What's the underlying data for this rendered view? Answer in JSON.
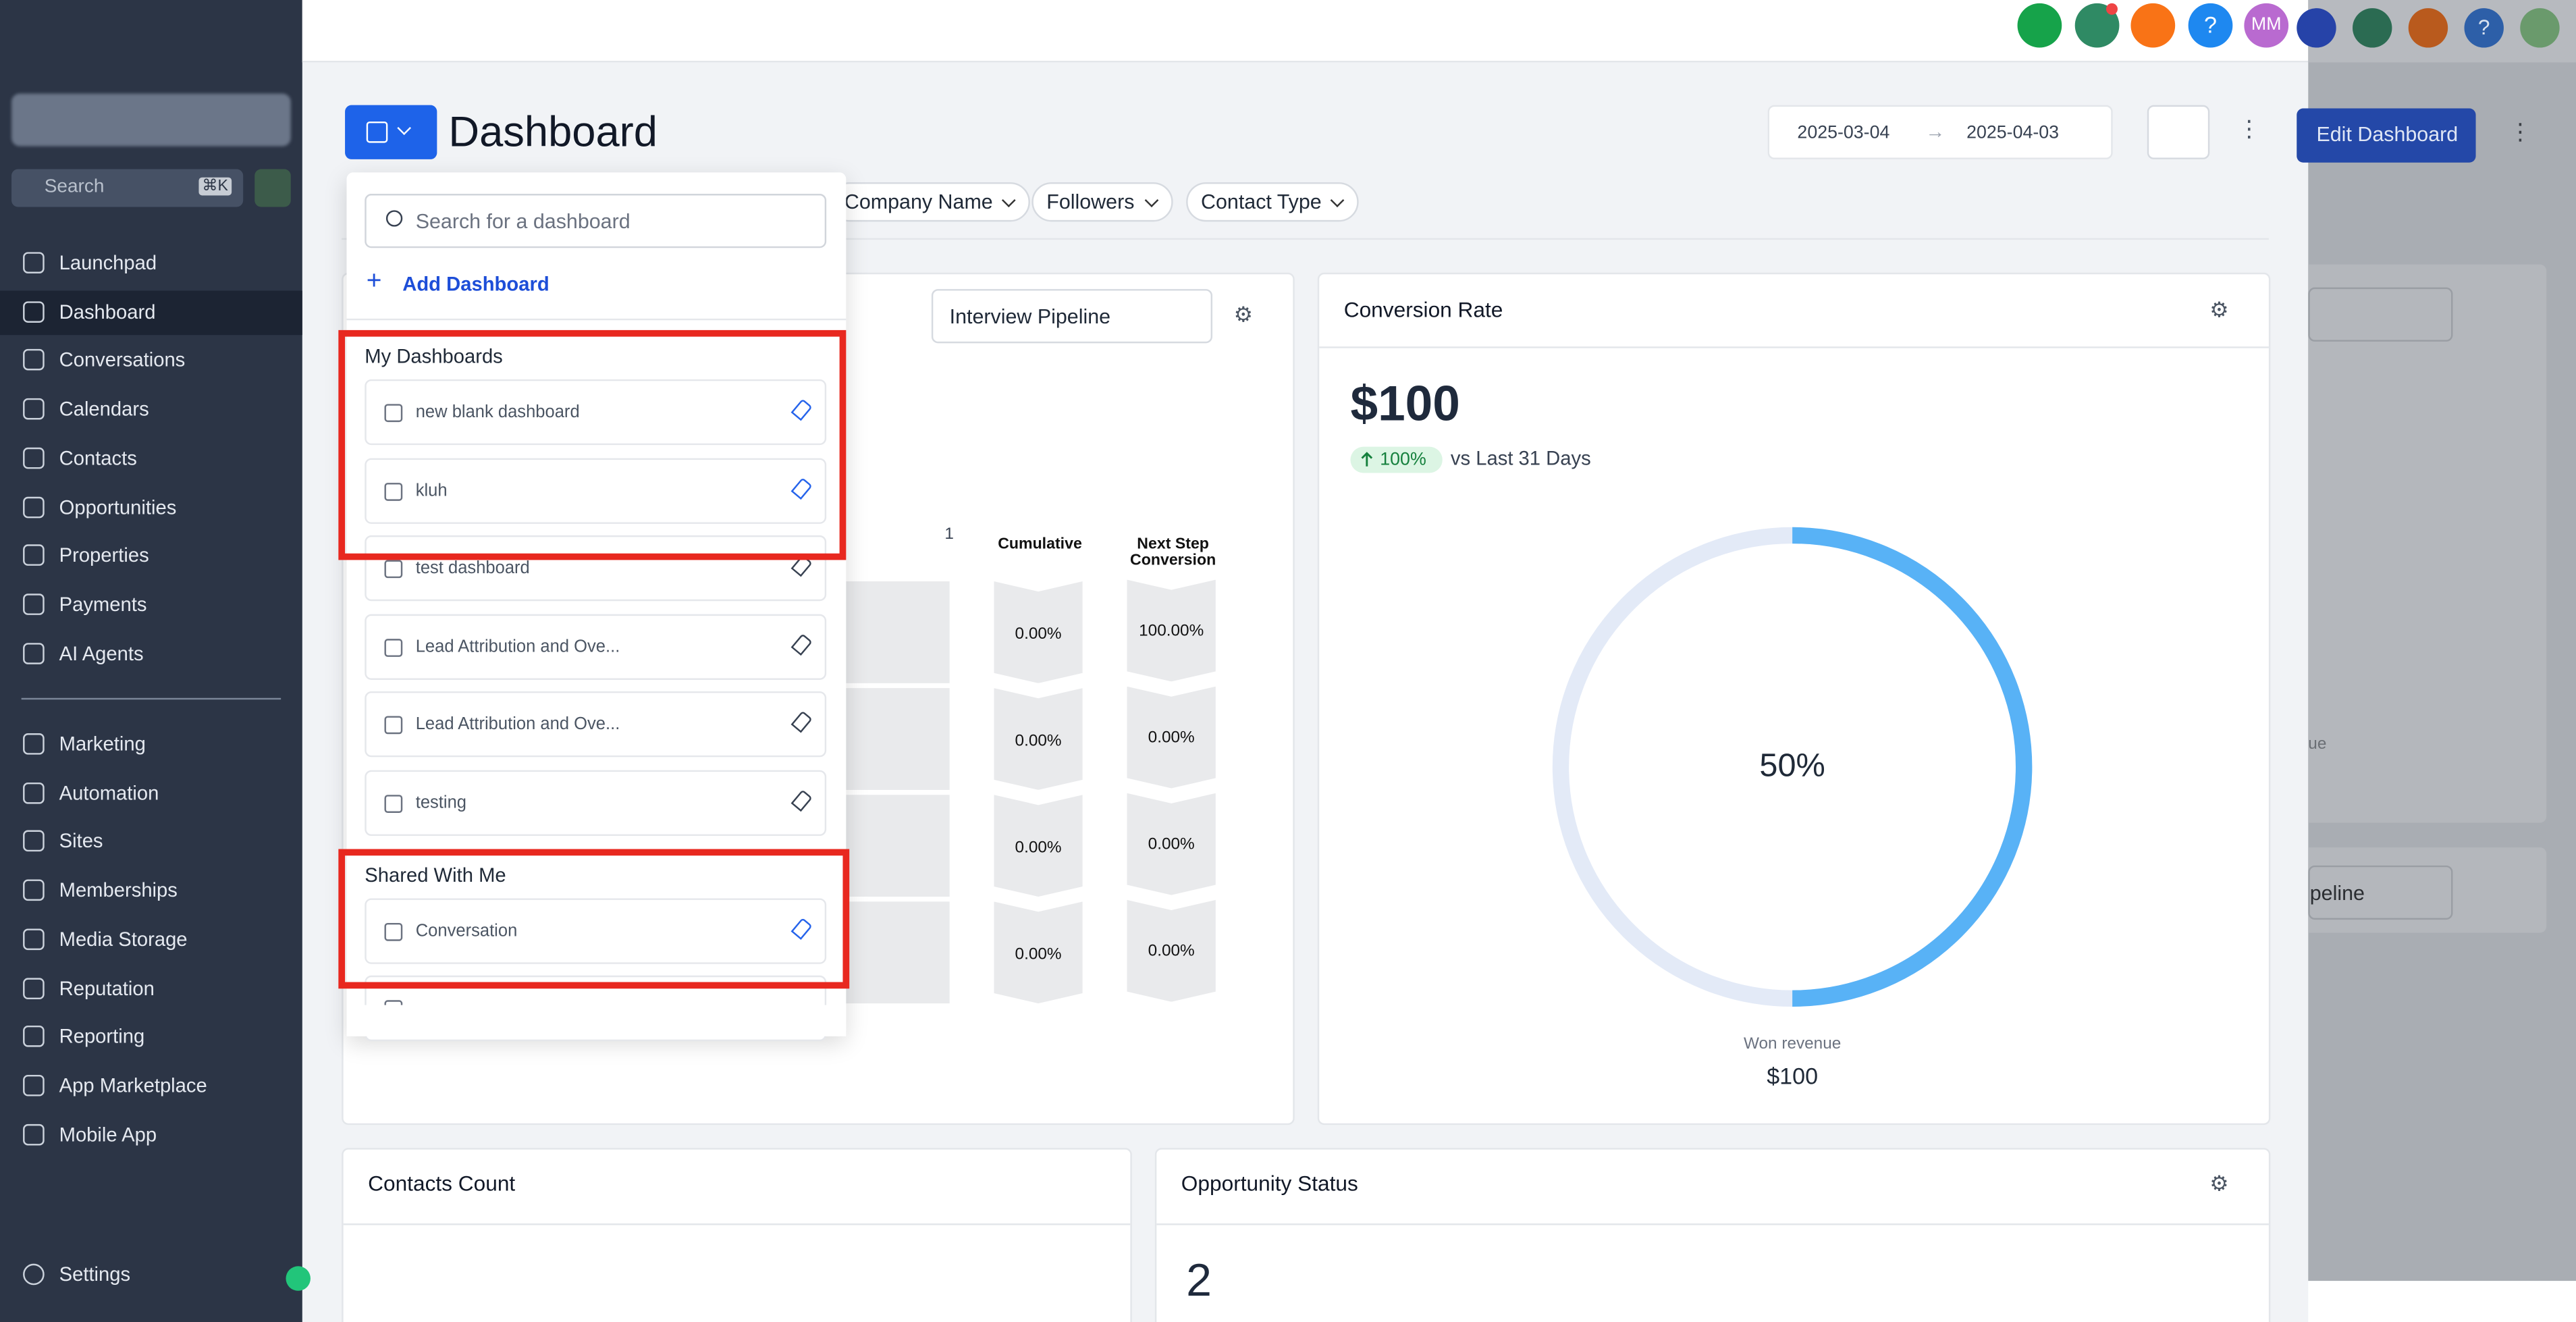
{
  "sidebar": {
    "search_placeholder": "Search",
    "search_shortcut": "⌘K",
    "nav_main": [
      "Launchpad",
      "Dashboard",
      "Conversations",
      "Calendars",
      "Contacts",
      "Opportunities",
      "Properties",
      "Payments",
      "AI Agents"
    ],
    "nav_secondary": [
      "Marketing",
      "Automation",
      "Sites",
      "Memberships",
      "Media Storage",
      "Reputation",
      "Reporting",
      "App Marketplace",
      "Mobile App"
    ],
    "settings": "Settings"
  },
  "topbar": {
    "help_icon": "?",
    "avatar": "MM"
  },
  "header": {
    "title": "Dashboard",
    "date_start": "2025-03-04",
    "date_end": "2025-04-03"
  },
  "filters": [
    "Company Name",
    "Followers",
    "Contact Type"
  ],
  "dashboard_menu": {
    "search_placeholder": "Search for a dashboard",
    "add_label": "Add Dashboard",
    "my_dashboards": {
      "heading": "My Dashboards",
      "items": [
        "new blank dashboard",
        "kluh",
        "test dashboard",
        "Lead Attribution and Ove...",
        "Lead Attribution and Ove...",
        "testing"
      ]
    },
    "shared_with_me": {
      "heading": "Shared With Me",
      "items": [
        "Conversation"
      ]
    }
  },
  "funnel_widget": {
    "pipeline": "Interview Pipeline",
    "stage_count": "1",
    "columns": [
      "Cumulative",
      "Next Step Conversion"
    ],
    "cumulative": [
      "0.00%",
      "0.00%",
      "0.00%",
      "0.00%"
    ],
    "next_step": [
      "100.00%",
      "0.00%",
      "0.00%",
      "0.00%"
    ]
  },
  "conversion_rate": {
    "title": "Conversion Rate",
    "value": "$100",
    "change": "100%",
    "comparison": "vs Last 31 Days",
    "ratio": "50%",
    "footer_label": "Won revenue",
    "footer_value": "$100"
  },
  "contacts_count": {
    "title": "Contacts Count"
  },
  "opportunity_status": {
    "title": "Opportunity Status",
    "value": "2"
  },
  "background_page": {
    "button": "Edit Dashboard",
    "help_icon": "?",
    "fragments": [
      "ue",
      "peline"
    ]
  }
}
